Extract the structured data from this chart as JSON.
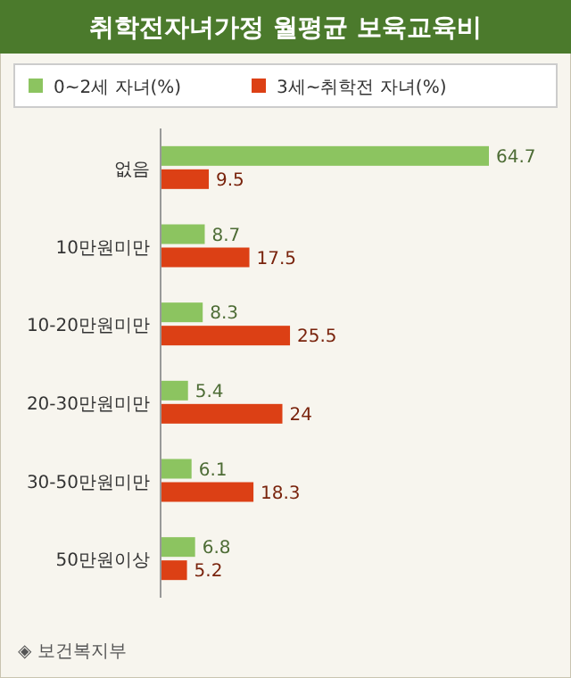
{
  "chart_data": {
    "type": "bar",
    "orientation": "horizontal",
    "title": "취학전자녀가정 월평균 보육교육비",
    "categories": [
      "없음",
      "10만원미만",
      "10-20만원미만",
      "20-30만원미만",
      "30-50만원미만",
      "50만원이상"
    ],
    "series": [
      {
        "name": "0~2세 자녀(%)",
        "color": "#8cc460",
        "values": [
          64.7,
          8.7,
          8.3,
          5.4,
          6.1,
          6.8
        ]
      },
      {
        "name": "3세~취학전 자녀(%)",
        "color": "#dc4015",
        "values": [
          9.5,
          17.5,
          25.5,
          24,
          18.3,
          5.2
        ]
      }
    ],
    "data_labels": true,
    "legend": "top",
    "annotations": [
      "◈ 보건복지부"
    ]
  }
}
